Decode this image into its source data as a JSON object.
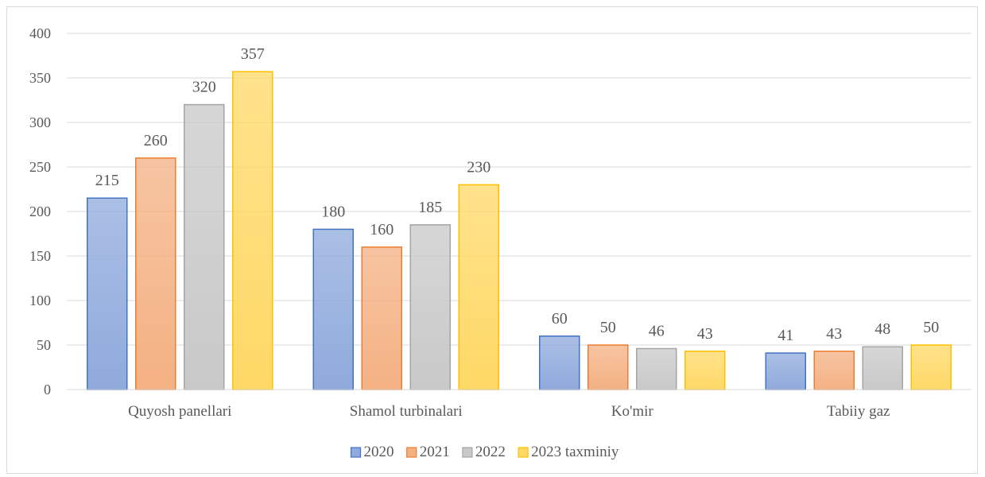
{
  "chart_data": {
    "type": "bar",
    "title": "",
    "xlabel": "",
    "ylabel": "",
    "categories": [
      "Quyosh panellari",
      "Shamol turbinalari",
      "Ko'mir",
      "Tabiiy gaz"
    ],
    "series": [
      {
        "name": "2020",
        "values": [
          215,
          180,
          60,
          41
        ],
        "color": "#8FAADC",
        "stroke": "#4472C4"
      },
      {
        "name": "2021",
        "values": [
          260,
          160,
          50,
          43
        ],
        "color": "#F4B183",
        "stroke": "#ED7D31"
      },
      {
        "name": "2022",
        "values": [
          320,
          185,
          46,
          48
        ],
        "color": "#C9C9C9",
        "stroke": "#A5A5A5"
      },
      {
        "name": "2023 taxminiy",
        "values": [
          357,
          230,
          43,
          50
        ],
        "color": "#FFD966",
        "stroke": "#FFC000"
      }
    ],
    "ylim": [
      0,
      400
    ],
    "yticks": [
      0,
      50,
      100,
      150,
      200,
      250,
      300,
      350,
      400
    ],
    "grid": true,
    "data_labels": true,
    "legend": "bottom"
  }
}
